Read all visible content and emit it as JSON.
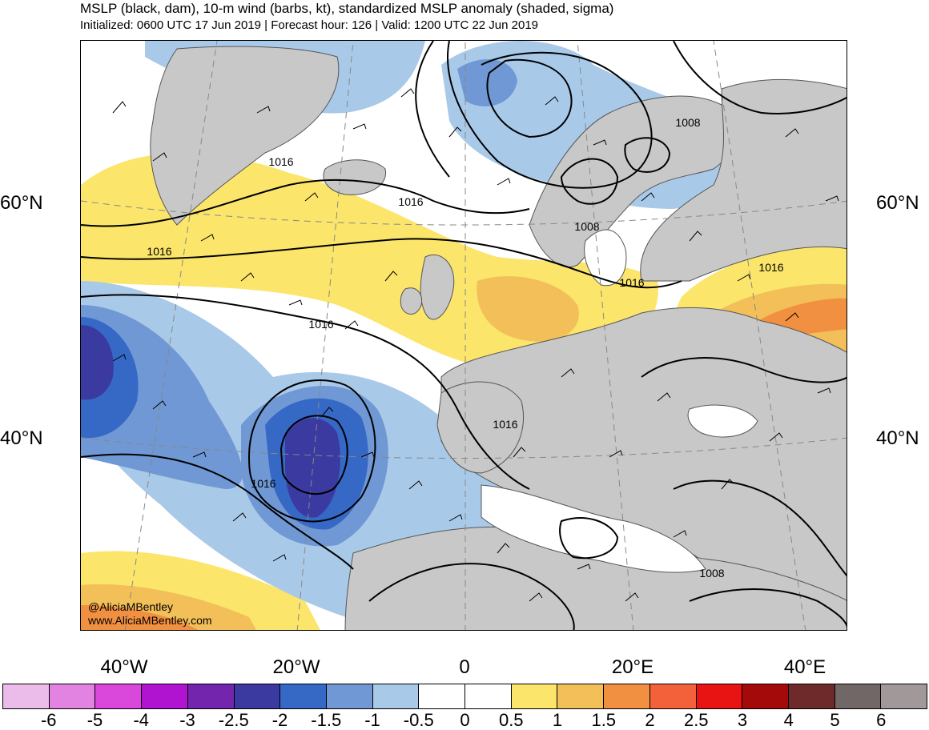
{
  "header": {
    "title": "MSLP (black, dam), 10-m wind (barbs, kt), standardized MSLP anomaly (shaded, sigma)",
    "subtitle": "Initialized: 0600 UTC 17 Jun 2019 | Forecast hour: 126 | Valid: 1200 UTC 22 Jun 2019"
  },
  "lat_labels": [
    "60°N",
    "40°N"
  ],
  "lon_labels": [
    "40°W",
    "20°W",
    "0",
    "20°E",
    "40°E"
  ],
  "contour_labels": [
    "1016",
    "1016",
    "1016",
    "1016",
    "1016",
    "1016",
    "1016",
    "1016",
    "1008",
    "1008",
    "1008"
  ],
  "credits": [
    "@AliciaMBentley",
    "www.AliciaMBentley.com"
  ],
  "colorbar": {
    "colors": [
      "#ebbce9",
      "#e283e2",
      "#d947db",
      "#b014d1",
      "#7326ad",
      "#3a3aa0",
      "#3668c6",
      "#6f98d4",
      "#a9c9e8",
      "#ffffff",
      "#ffffff",
      "#fbe56b",
      "#f2bf59",
      "#f19040",
      "#f2613a",
      "#e81414",
      "#a50a0a",
      "#6e2a2a",
      "#726767",
      "#a19999"
    ],
    "ticks": [
      "-6",
      "-5",
      "-4",
      "-3",
      "-2.5",
      "-2",
      "-1.5",
      "-1",
      "-0.5",
      "0",
      "0.5",
      "1",
      "1.5",
      "2",
      "2.5",
      "3",
      "4",
      "5",
      "6"
    ]
  },
  "colors": {
    "land": "#c8c8c8",
    "coast": "#555555",
    "contour": "#000000"
  }
}
